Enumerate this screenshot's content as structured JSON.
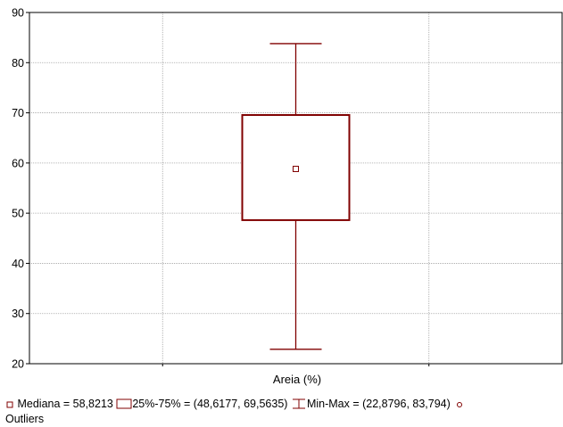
{
  "chart_data": {
    "type": "boxplot",
    "ylim": [
      20,
      90
    ],
    "yticks": [
      "20",
      "30",
      "40",
      "50",
      "60",
      "70",
      "80",
      "90"
    ],
    "categories": [
      "Areia (%)"
    ],
    "boxes": [
      {
        "category": "Areia (%)",
        "median": 58.8213,
        "q1": 48.6177,
        "q3": 69.5635,
        "min": 22.8796,
        "max": 83.794
      }
    ],
    "grid": true,
    "legend_position": "bottom",
    "legend": {
      "median": "Mediana = 58,8213",
      "box": "25%-75% = (48,6177, 69,5635)",
      "whisker": "Min-Max = (22,8796, 83,794)",
      "outliers": "Outliers"
    },
    "colors": {
      "series": "#800000",
      "grid": "#a0a0a0",
      "axis": "#000000"
    }
  }
}
